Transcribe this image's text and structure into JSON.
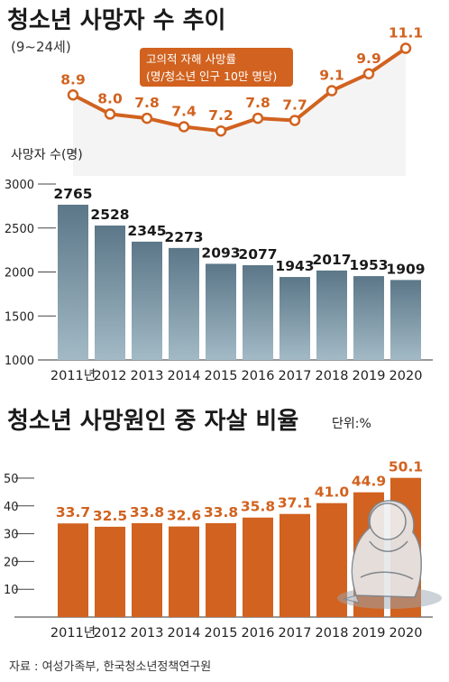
{
  "titles": {
    "main": "청소년 사망자 수 추이",
    "age_note": "(9~24세)",
    "second": "청소년 사망원인 중 자살 비율",
    "second_unit": "단위:%"
  },
  "legend": {
    "line1": "고의적 자해 사망률",
    "line2": "(명/청소년 인구 10만 명당)"
  },
  "source": "자료 : 여성가족부, 한국청소년정책연구원",
  "colors": {
    "orange": "#d1621f",
    "blue_top": "#5b7788",
    "blue_bottom": "#9eb6c3"
  },
  "chart_data": [
    {
      "type": "line",
      "title": "고의적 자해 사망률",
      "categories": [
        "2011년",
        "2012",
        "2013",
        "2014",
        "2015",
        "2016",
        "2017",
        "2018",
        "2019",
        "2020"
      ],
      "values": [
        8.9,
        8.0,
        7.8,
        7.4,
        7.2,
        7.8,
        7.7,
        9.1,
        9.9,
        11.1
      ],
      "labels": [
        "8.9",
        "8.0",
        "7.8",
        "7.4",
        "7.2",
        "7.8",
        "7.7",
        "9.1",
        "9.9",
        "11.1"
      ]
    },
    {
      "type": "bar",
      "ylabel": "사망자 수(명)",
      "categories": [
        "2011년",
        "2012",
        "2013",
        "2014",
        "2015",
        "2016",
        "2017",
        "2018",
        "2019",
        "2020"
      ],
      "values": [
        2765,
        2528,
        2345,
        2273,
        2093,
        2077,
        1943,
        2017,
        1953,
        1909
      ],
      "labels": [
        "2765",
        "2528",
        "2345",
        "2273",
        "2093",
        "2077",
        "1943",
        "2017",
        "1953",
        "1909"
      ],
      "ylim": [
        1000,
        3000
      ],
      "yticks": [
        "3000",
        "2500",
        "2000",
        "1500",
        "1000"
      ]
    },
    {
      "type": "bar",
      "title": "청소년 사망원인 중 자살 비율",
      "categories": [
        "2011년",
        "2012",
        "2013",
        "2014",
        "2015",
        "2016",
        "2017",
        "2018",
        "2019",
        "2020"
      ],
      "values": [
        33.7,
        32.5,
        33.8,
        32.6,
        33.8,
        35.8,
        37.1,
        41.0,
        44.9,
        50.1
      ],
      "labels": [
        "33.7",
        "32.5",
        "33.8",
        "32.6",
        "33.8",
        "35.8",
        "37.1",
        "41.0",
        "44.9",
        "50.1"
      ],
      "ylim": [
        0,
        55
      ],
      "yticks": [
        "50",
        "40",
        "30",
        "20",
        "10"
      ]
    }
  ]
}
